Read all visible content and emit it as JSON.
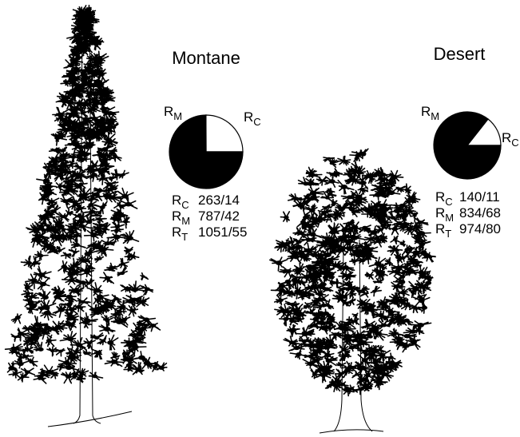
{
  "chart_data": [
    {
      "type": "pie",
      "title": "Montane",
      "categories": [
        {
          "symbol": "R",
          "subscript": "C"
        },
        {
          "symbol": "R",
          "subscript": "M"
        }
      ],
      "values": [
        263,
        787
      ],
      "value_labels": [
        "263/14",
        "787/42"
      ],
      "colors": [
        "#ffffff",
        "#000000"
      ],
      "total": {
        "symbol": "R",
        "subscript": "T",
        "label": "1051/55"
      }
    },
    {
      "type": "pie",
      "title": "Desert",
      "categories": [
        {
          "symbol": "R",
          "subscript": "C"
        },
        {
          "symbol": "R",
          "subscript": "M"
        }
      ],
      "values": [
        140,
        834
      ],
      "value_labels": [
        "140/11",
        "834/68"
      ],
      "colors": [
        "#ffffff",
        "#000000"
      ],
      "total": {
        "symbol": "R",
        "subscript": "T",
        "label": "974/80"
      }
    }
  ]
}
